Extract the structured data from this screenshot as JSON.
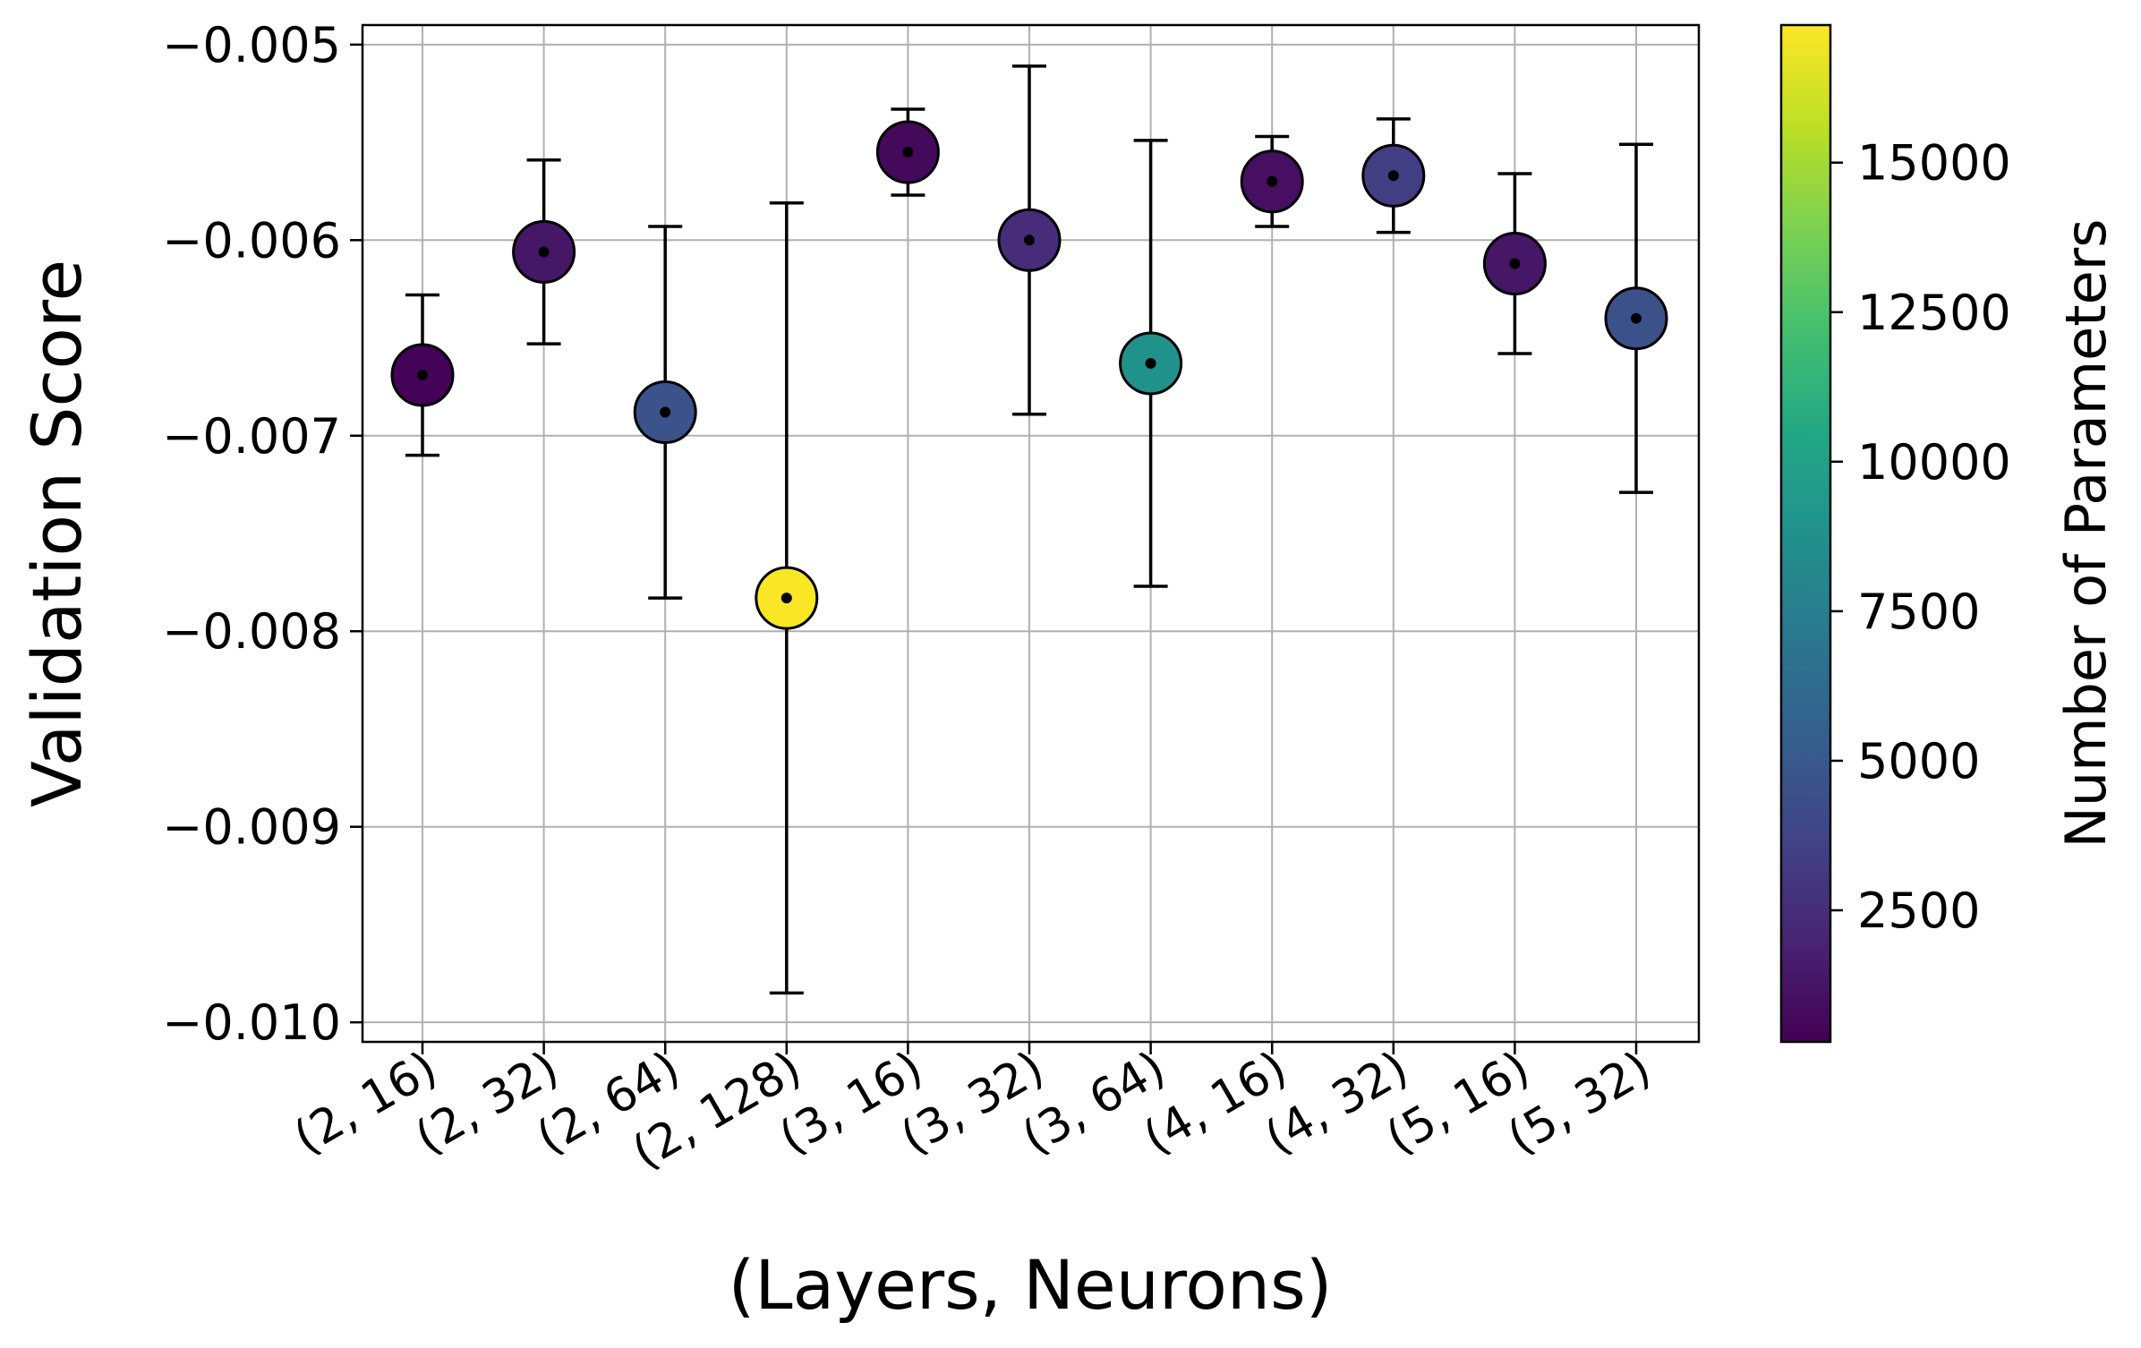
{
  "chart_data": {
    "type": "scatter",
    "xlabel": "(Layers, Neurons)",
    "ylabel": "Validation Score",
    "categories": [
      "(2, 16)",
      "(2, 32)",
      "(2, 64)",
      "(2, 128)",
      "(3, 16)",
      "(3, 32)",
      "(3, 64)",
      "(4, 16)",
      "(4, 32)",
      "(5, 16)",
      "(5, 32)"
    ],
    "values": [
      -0.00669,
      -0.00606,
      -0.00688,
      -0.00783,
      -0.00555,
      -0.006,
      -0.00663,
      -0.0057,
      -0.00567,
      -0.00612,
      -0.0064
    ],
    "errors": [
      0.00041,
      0.00047,
      0.00095,
      0.00202,
      0.00022,
      0.00089,
      0.00114,
      0.00023,
      0.00029,
      0.00046,
      0.00089
    ],
    "num_parameters": [
      400,
      1300,
      4600,
      17200,
      700,
      2400,
      8800,
      1000,
      3400,
      1300,
      4500
    ],
    "ylim": [
      -0.0101,
      -0.0049
    ],
    "yticks": [
      -0.005,
      -0.006,
      -0.007,
      -0.008,
      -0.009,
      -0.01
    ],
    "ytick_labels": [
      "−0.005",
      "−0.006",
      "−0.007",
      "−0.008",
      "−0.009",
      "−0.010"
    ],
    "grid": true,
    "colorbar": {
      "label": "Number of Parameters",
      "colormap": "viridis",
      "range": [
        300,
        17300
      ],
      "ticks": [
        2500,
        5000,
        7500,
        10000,
        12500,
        15000
      ],
      "tick_labels": [
        "2500",
        "5000",
        "7500",
        "10000",
        "12500",
        "15000"
      ]
    },
    "colors": {
      "marker_edge": "#000000",
      "errorbar": "#000000",
      "grid": "#b0b0b0"
    }
  }
}
